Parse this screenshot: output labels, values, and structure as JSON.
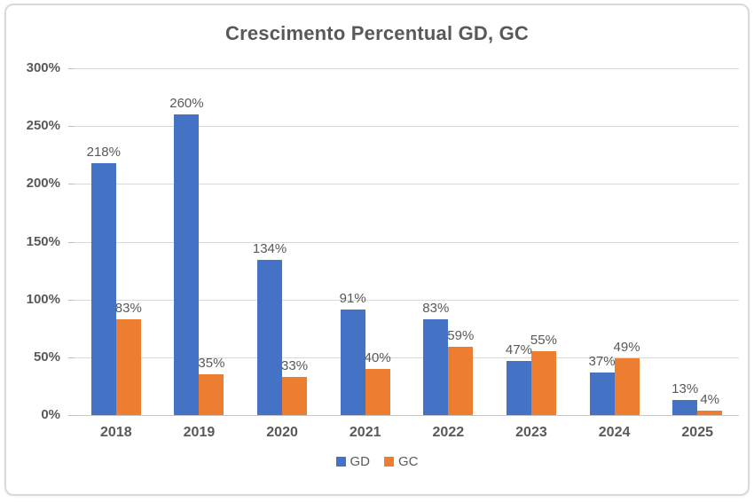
{
  "window": {
    "background": "#ffffff",
    "border_color": "#d9d9d9"
  },
  "chart_data": {
    "type": "bar",
    "title": "Crescimento Percentual GD, GC",
    "categories": [
      "2018",
      "2019",
      "2020",
      "2021",
      "2022",
      "2023",
      "2024",
      "2025"
    ],
    "series": [
      {
        "name": "GD",
        "color": "#4472c4",
        "values": [
          218,
          260,
          134,
          91,
          83,
          47,
          37,
          13
        ]
      },
      {
        "name": "GC",
        "color": "#ed7d31",
        "values": [
          83,
          35,
          33,
          40,
          59,
          55,
          49,
          4
        ]
      }
    ],
    "value_suffix": "%",
    "data_labels": true,
    "ylim": [
      0,
      300
    ],
    "yticks": [
      0,
      50,
      100,
      150,
      200,
      250,
      300
    ],
    "ytick_labels": [
      "0%",
      "50%",
      "100%",
      "150%",
      "200%",
      "250%",
      "300%"
    ],
    "xlabel": "",
    "ylabel": "",
    "grid": true,
    "gridline_color": "#d9d9d9",
    "text_color": "#595959",
    "legend_position": "bottom"
  }
}
